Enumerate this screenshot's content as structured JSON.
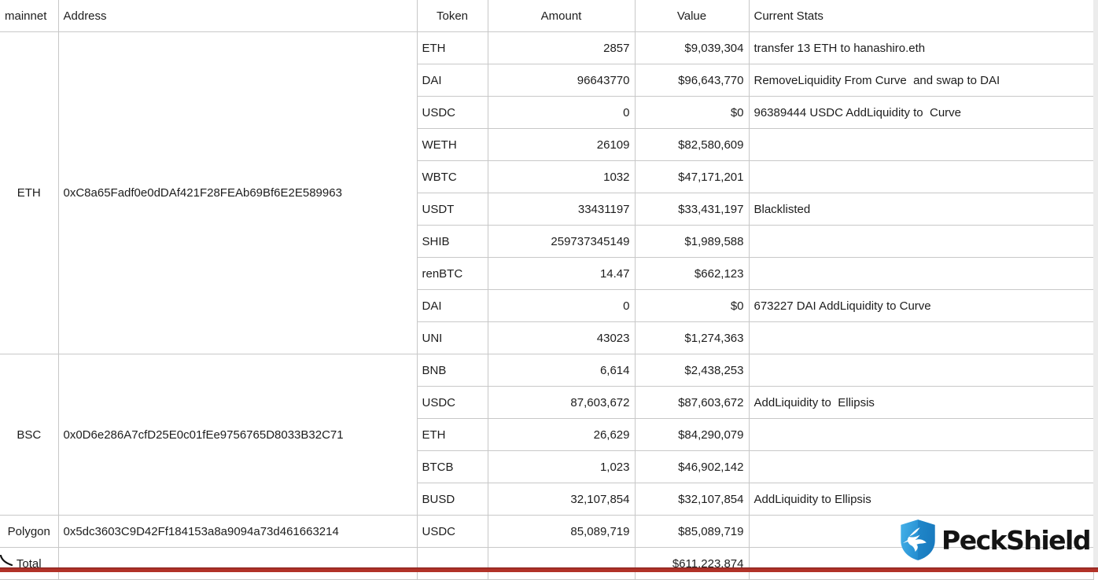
{
  "header": {
    "columns": [
      "mainnet",
      "Address",
      "Token",
      "Amount",
      "Value",
      "Current Stats"
    ]
  },
  "sections": [
    {
      "network": "ETH",
      "address": "0xC8a65Fadf0e0dDAf421F28FEAb69Bf6E2E589963",
      "rows": [
        {
          "token": "ETH",
          "amount": "2857",
          "value": "$9,039,304",
          "stats": "transfer 13 ETH to hanashiro.eth"
        },
        {
          "token": "DAI",
          "amount": "96643770",
          "value": "$96,643,770",
          "stats": "RemoveLiquidity From Curve  and swap to DAI"
        },
        {
          "token": "USDC",
          "amount": "0",
          "value": "$0",
          "stats": "96389444 USDC AddLiquidity to  Curve"
        },
        {
          "token": "WETH",
          "amount": "26109",
          "value": "$82,580,609",
          "stats": ""
        },
        {
          "token": "WBTC",
          "amount": "1032",
          "value": "$47,171,201",
          "stats": ""
        },
        {
          "token": "USDT",
          "amount": "33431197",
          "value": "$33,431,197",
          "stats": "Blacklisted"
        },
        {
          "token": "SHIB",
          "amount": "259737345149",
          "value": "$1,989,588",
          "stats": ""
        },
        {
          "token": "renBTC",
          "amount": "14.47",
          "value": "$662,123",
          "stats": ""
        },
        {
          "token": "DAI",
          "amount": "0",
          "value": "$0",
          "stats": "673227 DAI AddLiquidity to Curve"
        },
        {
          "token": "UNI",
          "amount": "43023",
          "value": "$1,274,363",
          "stats": ""
        }
      ]
    },
    {
      "network": "BSC",
      "address": "0x0D6e286A7cfD25E0c01fEe9756765D8033B32C71",
      "rows": [
        {
          "token": "BNB",
          "amount": "6,614",
          "value": "$2,438,253",
          "stats": ""
        },
        {
          "token": "USDC",
          "amount": "87,603,672",
          "value": "$87,603,672",
          "stats": "AddLiquidity to  Ellipsis"
        },
        {
          "token": "ETH",
          "amount": "26,629",
          "value": "$84,290,079",
          "stats": ""
        },
        {
          "token": "BTCB",
          "amount": "1,023",
          "value": "$46,902,142",
          "stats": ""
        },
        {
          "token": "BUSD",
          "amount": "32,107,854",
          "value": "$32,107,854",
          "stats": "AddLiquidity to Ellipsis"
        }
      ]
    },
    {
      "network": "Polygon",
      "address": "0x5dc3603C9D42Ff184153a8a9094a73d461663214",
      "rows": [
        {
          "token": "USDC",
          "amount": "85,089,719",
          "value": "$85,089,719",
          "stats": ""
        }
      ]
    }
  ],
  "total": {
    "label": "Total",
    "value": "$611,223,874"
  },
  "watermark": {
    "brand": "PeckShield",
    "shield_icon": "shield-bird-icon",
    "colors": {
      "shield_light": "#45b1e8",
      "shield_dark": "#1a7bc0",
      "bird": "#ffffff",
      "text": "#141414"
    }
  },
  "decor": {
    "footer_bar_color": "#b23329",
    "footer_bar_edge": "#8a2420",
    "grid_color": "#c8c8c8",
    "right_strip_color": "#ececec"
  }
}
